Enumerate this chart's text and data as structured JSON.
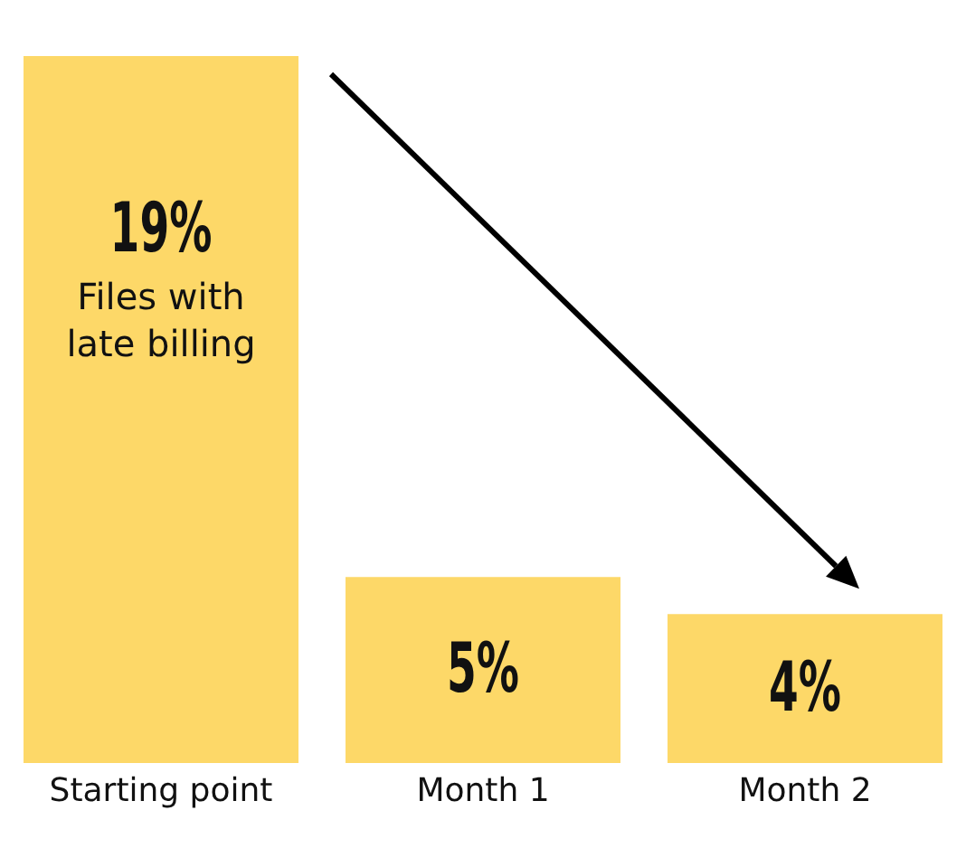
{
  "chart_data": {
    "type": "bar",
    "categories": [
      "Starting point",
      "Month 1",
      "Month 2"
    ],
    "values": [
      19,
      5,
      4
    ],
    "value_labels": [
      "19%",
      "5%",
      "4%"
    ],
    "color": "#fdd868",
    "annotations": [
      "Files with late billing"
    ],
    "grid": false,
    "legend": false
  }
}
